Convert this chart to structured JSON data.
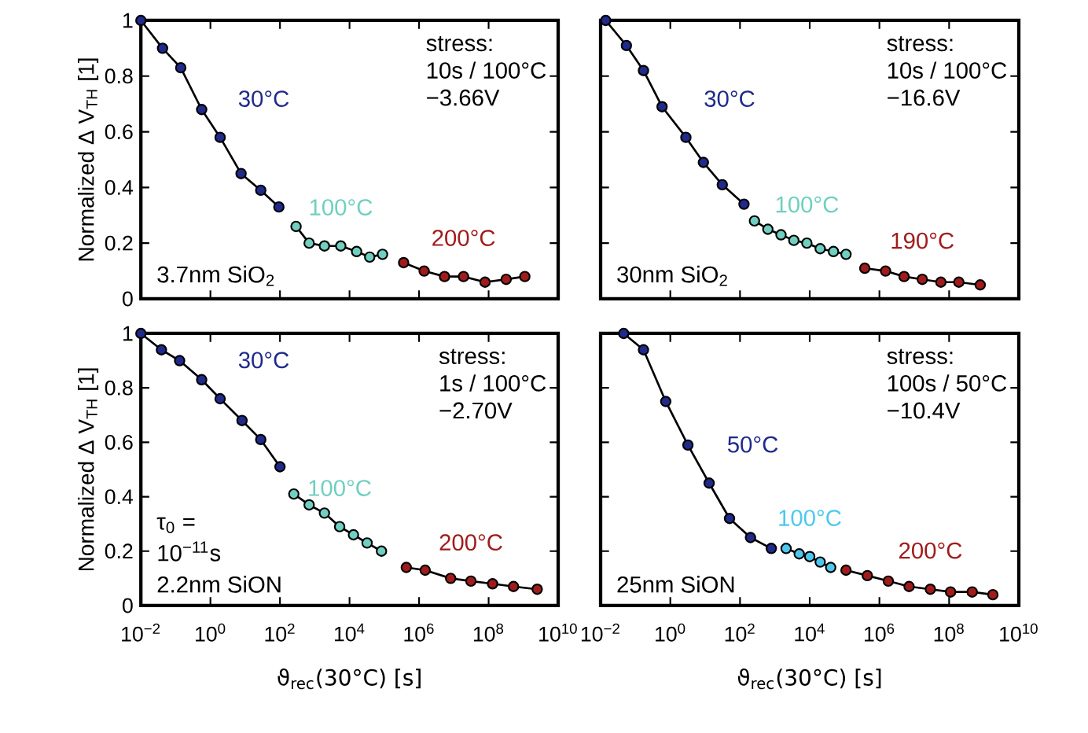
{
  "chart_data": [
    {
      "type": "line",
      "ylabel": "Normalized Δ V$_{TH}$ [1]",
      "log": "x",
      "marker": "circle",
      "line_style": "solid",
      "tick_labels": "y",
      "xlim": [
        0.01,
        10000000000.0
      ],
      "ylim": [
        0,
        1
      ],
      "xticks": [
        {
          "value": 0.01,
          "label": null
        },
        {
          "value": 1,
          "label": null
        },
        {
          "value": 100,
          "label": null
        },
        {
          "value": 10000.0,
          "label": null
        },
        {
          "value": 1000000.0,
          "label": null
        },
        {
          "value": 100000000.0,
          "label": null
        },
        {
          "value": 10000000000.0,
          "label": null
        }
      ],
      "yticks": [
        0,
        0.2,
        0.4,
        0.6,
        0.8,
        1
      ],
      "annotations": [
        "stress:",
        "10s / 100°C",
        "−3.66V",
        "3.7nm SiO$_{2}$"
      ],
      "series": [
        {
          "name": "30°C",
          "color": "#1f2a8a",
          "x": [
            0.01,
            0.042,
            0.14,
            0.56,
            1.9,
            7.6,
            28,
            93
          ],
          "values": [
            1.0,
            0.9,
            0.83,
            0.68,
            0.58,
            0.45,
            0.39,
            0.33
          ]
        },
        {
          "name": "100°C",
          "color": "#6fcfc0",
          "x": [
            290,
            690,
            1900,
            5600,
            16000,
            38000,
            89000
          ],
          "values": [
            0.26,
            0.2,
            0.19,
            0.19,
            0.17,
            0.15,
            0.16
          ]
        },
        {
          "name": "200°C",
          "color": "#a01c1c",
          "x": [
            360000.0,
            1400000.0,
            5400000.0,
            19000000.0,
            79000000.0,
            320000000.0,
            1100000000.0
          ],
          "values": [
            0.13,
            0.1,
            0.08,
            0.08,
            0.06,
            0.07,
            0.08
          ]
        }
      ]
    },
    {
      "type": "line",
      "log": "x",
      "marker": "circle",
      "line_style": "solid",
      "tick_labels": false,
      "xlim": [
        0.01,
        10000000000.0
      ],
      "ylim": [
        0,
        1
      ],
      "xticks": [
        {
          "value": 0.01,
          "label": null
        },
        {
          "value": 1,
          "label": null
        },
        {
          "value": 100,
          "label": null
        },
        {
          "value": 10000.0,
          "label": null
        },
        {
          "value": 1000000.0,
          "label": null
        },
        {
          "value": 100000000.0,
          "label": null
        },
        {
          "value": 10000000000.0,
          "label": null
        }
      ],
      "yticks": [
        {
          "value": 0,
          "label": null
        },
        {
          "value": 0.2,
          "label": null
        },
        {
          "value": 0.4,
          "label": null
        },
        {
          "value": 0.6,
          "label": null
        },
        {
          "value": 0.8,
          "label": null
        },
        {
          "value": 1,
          "label": null
        }
      ],
      "annotations": [
        "stress:",
        "10s / 100°C",
        "−16.6V",
        "30nm SiO$_{2}$"
      ],
      "series": [
        {
          "name": "30°C",
          "color": "#1f2a8a",
          "x": [
            0.014,
            0.055,
            0.17,
            0.58,
            2.8,
            8.9,
            31,
            130
          ],
          "values": [
            1.0,
            0.91,
            0.82,
            0.69,
            0.58,
            0.49,
            0.41,
            0.34
          ]
        },
        {
          "name": "100°C",
          "color": "#6fcfc0",
          "x": [
            260,
            630,
            1500,
            3500,
            8300,
            20000,
            48000,
            110000.0
          ],
          "values": [
            0.28,
            0.25,
            0.23,
            0.21,
            0.2,
            0.18,
            0.17,
            0.16
          ]
        },
        {
          "name": "190°C",
          "color": "#a01c1c",
          "x": [
            380000.0,
            1500000.0,
            5100000.0,
            17000000.0,
            58000000.0,
            190000000.0,
            780000000.0
          ],
          "values": [
            0.11,
            0.1,
            0.08,
            0.07,
            0.06,
            0.06,
            0.05
          ]
        }
      ]
    },
    {
      "type": "line",
      "xlabel": "ϑ$_{rec}$(30°C) [s]",
      "ylabel": "Normalized Δ V$_{TH}$ [1]",
      "log": "x",
      "marker": "circle",
      "line_style": "solid",
      "xlim": [
        0.01,
        10000000000.0
      ],
      "ylim": [
        0,
        1
      ],
      "xticks": [
        {
          "value": 0.01,
          "label": "10$^{−2}$"
        },
        {
          "value": 1,
          "label": "10$^{0}$"
        },
        {
          "value": 100,
          "label": "10$^{2}$"
        },
        {
          "value": 10000.0,
          "label": "10$^{4}$"
        },
        {
          "value": 1000000.0,
          "label": "10$^{6}$"
        },
        {
          "value": 100000000.0,
          "label": "10$^{8}$"
        },
        {
          "value": 10000000000.0,
          "label": "10$^{10}$"
        }
      ],
      "yticks": [
        0,
        0.2,
        0.4,
        0.6,
        0.8,
        1
      ],
      "annotations": [
        "stress:",
        "1s / 100°C",
        "−2.70V",
        "τ$_{0}$ =",
        "10$^{−11}$s",
        "2.2nm SiON"
      ],
      "series": [
        {
          "name": "30°C",
          "color": "#1f2a8a",
          "x": [
            0.01,
            0.039,
            0.13,
            0.56,
            1.9,
            8.1,
            28,
            100
          ],
          "values": [
            1.0,
            0.94,
            0.9,
            0.83,
            0.76,
            0.68,
            0.61,
            0.51
          ]
        },
        {
          "name": "100°C",
          "color": "#6fcfc0",
          "x": [
            250,
            690,
            1900,
            5200,
            13000,
            32000,
            83000
          ],
          "values": [
            0.41,
            0.37,
            0.34,
            0.29,
            0.26,
            0.23,
            0.2
          ]
        },
        {
          "name": "200°C",
          "color": "#a01c1c",
          "x": [
            430000.0,
            1500000.0,
            8100000.0,
            31000000.0,
            130000000.0,
            520000000.0,
            2500000000.0
          ],
          "values": [
            0.14,
            0.13,
            0.1,
            0.09,
            0.08,
            0.07,
            0.06
          ]
        }
      ]
    },
    {
      "type": "line",
      "xlabel": "ϑ$_{rec}$(30°C) [s]",
      "log": "x",
      "marker": "circle",
      "line_style": "solid",
      "tick_labels": "x",
      "xlim": [
        0.01,
        10000000000.0
      ],
      "ylim": [
        0,
        1
      ],
      "xticks": [
        {
          "value": 0.01,
          "label": "10$^{−2}$"
        },
        {
          "value": 1,
          "label": "10$^{0}$"
        },
        {
          "value": 100,
          "label": "10$^{2}$"
        },
        {
          "value": 10000.0,
          "label": "10$^{4}$"
        },
        {
          "value": 1000000.0,
          "label": "10$^{6}$"
        },
        {
          "value": 100000000.0,
          "label": "10$^{8}$"
        },
        {
          "value": 10000000000.0,
          "label": "10$^{10}$"
        }
      ],
      "yticks": [
        {
          "value": 0,
          "label": null
        },
        {
          "value": 0.2,
          "label": null
        },
        {
          "value": 0.4,
          "label": null
        },
        {
          "value": 0.6,
          "label": null
        },
        {
          "value": 0.8,
          "label": null
        },
        {
          "value": 1,
          "label": null
        }
      ],
      "annotations": [
        "stress:",
        "100s / 50°C",
        "−10.4V",
        "25nm SiON"
      ],
      "series": [
        {
          "name": "50°C",
          "color": "#1f2a8a",
          "x": [
            0.046,
            0.17,
            0.74,
            3.2,
            13,
            50,
            200,
            790
          ],
          "values": [
            1.0,
            0.94,
            0.75,
            0.59,
            0.45,
            0.32,
            0.25,
            0.21
          ]
        },
        {
          "name": "100°C",
          "color": "#4cc8ee",
          "x": [
            2100,
            5000,
            10000,
            20000,
            40000
          ],
          "values": [
            0.21,
            0.19,
            0.18,
            0.16,
            0.14
          ]
        },
        {
          "name": "200°C",
          "color": "#a01c1c",
          "x": [
            110000.0,
            450000.0,
            1800000.0,
            7100000.0,
            29000000.0,
            110000000.0,
            460000000.0,
            1800000000.0
          ],
          "values": [
            0.13,
            0.11,
            0.09,
            0.07,
            0.06,
            0.05,
            0.05,
            0.04
          ]
        }
      ]
    }
  ]
}
